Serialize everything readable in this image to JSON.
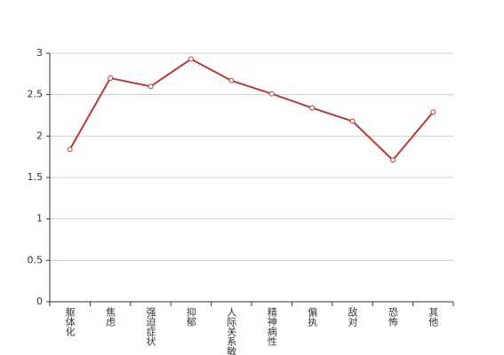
{
  "chart_data": {
    "type": "line",
    "categories": [
      "躯体化",
      "焦虑",
      "强迫症状",
      "抑郁",
      "人际关系敏感",
      "精神病性",
      "偏执",
      "敌对",
      "恐怖",
      "其他"
    ],
    "values": [
      1.84,
      2.7,
      2.6,
      2.93,
      2.67,
      2.51,
      2.34,
      2.18,
      1.71,
      2.29
    ],
    "color": "#b83a36",
    "ylim": [
      0,
      3
    ],
    "yticks": [
      0,
      0.5,
      1,
      1.5,
      2,
      2.5,
      3
    ],
    "grid": true
  }
}
